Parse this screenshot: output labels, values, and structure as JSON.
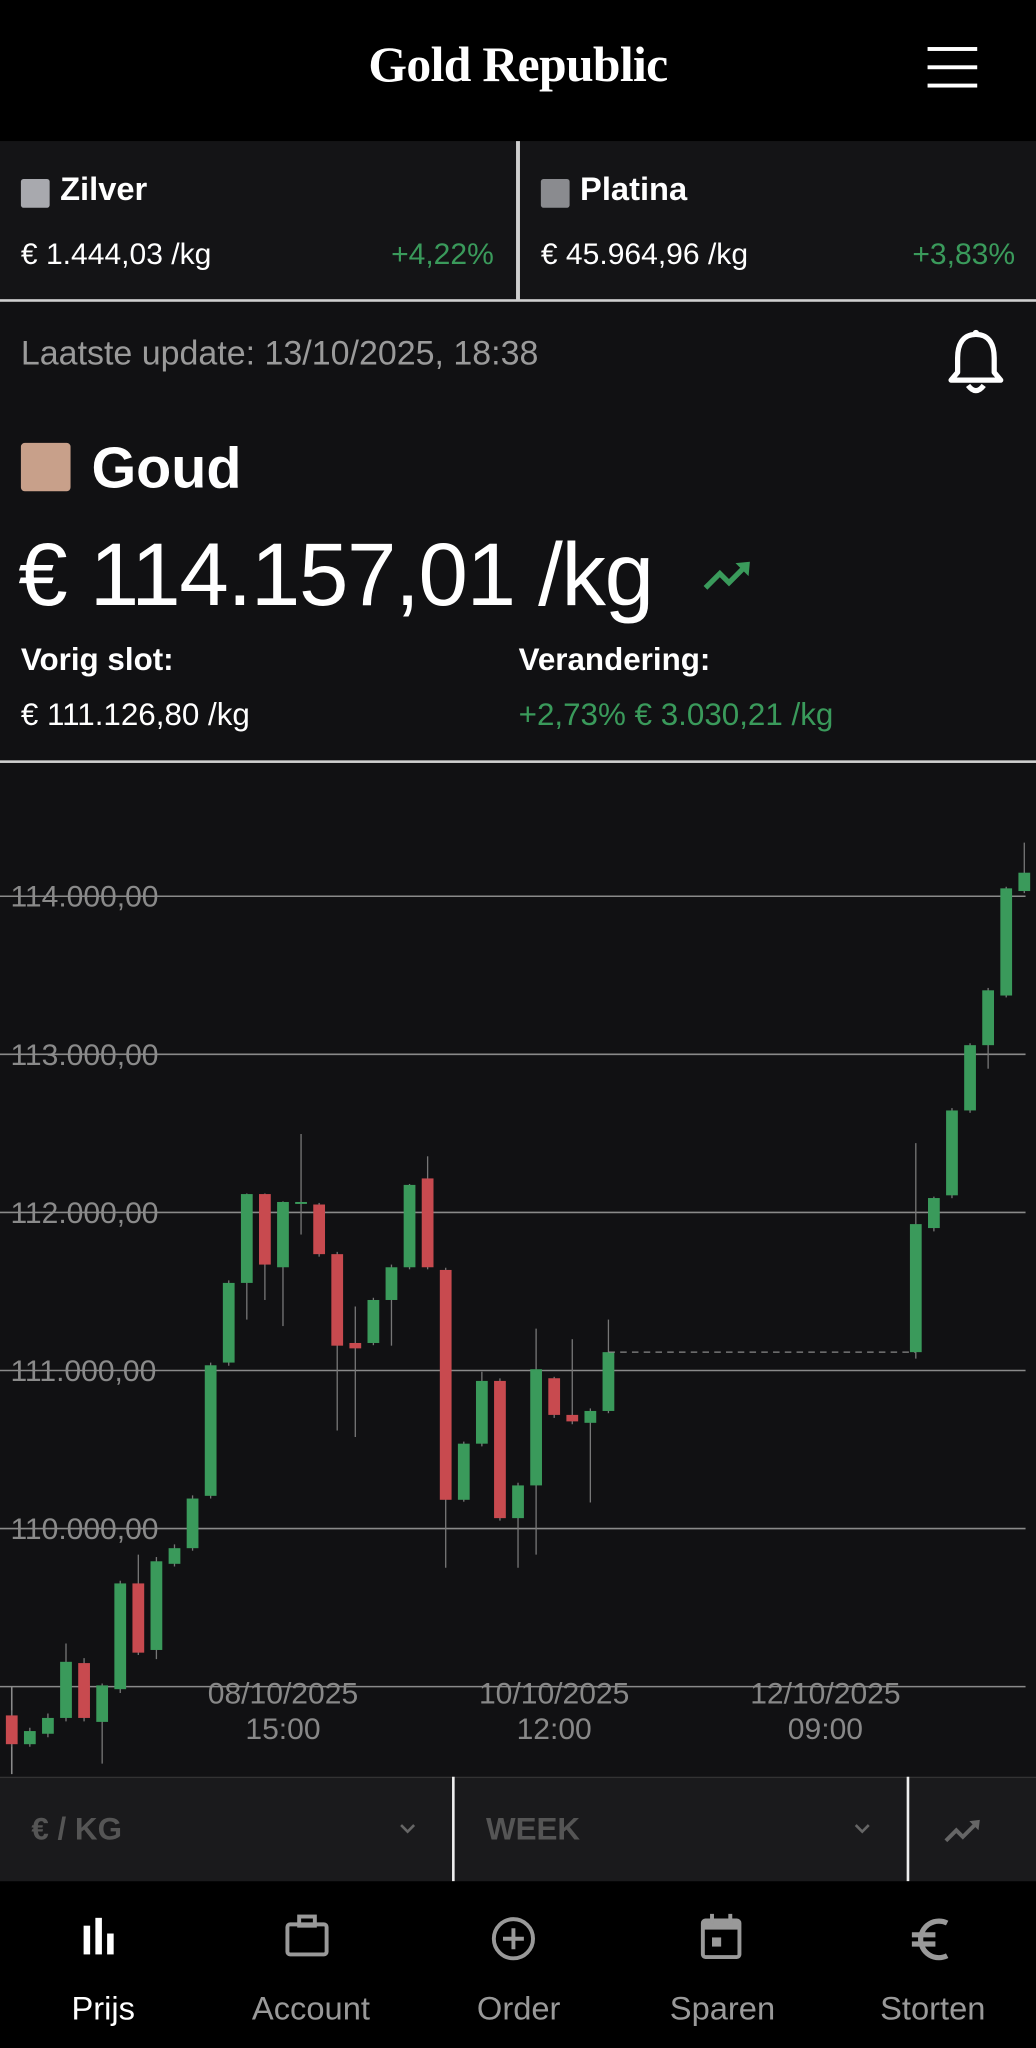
{
  "header": {
    "title": "Gold Republic"
  },
  "tickers": [
    {
      "name": "Zilver",
      "price": "€ 1.444,03 /kg",
      "change": "+4,22%"
    },
    {
      "name": "Platina",
      "price": "€ 45.964,96 /kg",
      "change": "+3,83%"
    }
  ],
  "last_update": "Laatste update: 13/10/2025, 18:38",
  "metal": {
    "name": "Goud",
    "price": "€ 114.157,01 /kg",
    "previous_close_label": "Vorig slot:",
    "previous_close": "€ 111.126,80 /kg",
    "change_label": "Verandering:",
    "change": "+2,73% € 3.030,21 /kg"
  },
  "chart_data": {
    "type": "candlestick",
    "categories": [
      null,
      null,
      null,
      null,
      null,
      null,
      null,
      null,
      null,
      null,
      null,
      null,
      null,
      null,
      null,
      "08/10/2025 15:00",
      null,
      null,
      null,
      null,
      null,
      null,
      null,
      null,
      null,
      null,
      null,
      null,
      null,
      null,
      "10/10/2025 12:00",
      null,
      null,
      null,
      null,
      null,
      null,
      null,
      null,
      null,
      null,
      null,
      null,
      null,
      null,
      "12/10/2025 09:00",
      null,
      null,
      null,
      null,
      null,
      null,
      null,
      null,
      null,
      null,
      null
    ],
    "open": [
      108818,
      108636,
      108702,
      108802,
      109149,
      108777,
      108984,
      109653,
      109232,
      109777,
      109876,
      110207,
      111050,
      111554,
      112116,
      111653,
      112058,
      112050,
      111736,
      111174,
      111174,
      111446,
      111653,
      112215,
      111636,
      110182,
      110537,
      110934,
      110066,
      110273,
      110951,
      110719,
      110669,
      110744,
      null,
      null,
      null,
      null,
      null,
      null,
      null,
      null,
      null,
      null,
      null,
      null,
      null,
      null,
      null,
      null,
      111116,
      111901,
      112108,
      112645,
      113058,
      113372,
      114033
    ],
    "high": [
      108850,
      108740,
      108830,
      109273,
      109180,
      109020,
      109670,
      109835,
      109820,
      109900,
      110210,
      111050,
      111570,
      112120,
      112120,
      112070,
      112496,
      112060,
      111750,
      111405,
      111460,
      111670,
      112180,
      112355,
      111650,
      110550,
      110992,
      110950,
      110290,
      111265,
      110960,
      111198,
      110760,
      111322,
      null,
      null,
      null,
      null,
      null,
      null,
      null,
      null,
      null,
      null,
      null,
      null,
      null,
      null,
      null,
      null,
      112438,
      112100,
      112660,
      113070,
      113420,
      114060,
      114339
    ],
    "low": [
      108620,
      108620,
      108680,
      108780,
      108780,
      108513,
      108960,
      109200,
      109174,
      109760,
      109860,
      110190,
      111030,
      111322,
      111446,
      111281,
      111860,
      111720,
      110620,
      110579,
      111160,
      111157,
      111640,
      111640,
      109752,
      110170,
      110520,
      110050,
      109752,
      109835,
      110700,
      110660,
      110165,
      110730,
      null,
      null,
      null,
      null,
      null,
      null,
      null,
      null,
      null,
      null,
      null,
      null,
      null,
      null,
      null,
      null,
      111075,
      111880,
      112090,
      112630,
      112909,
      113360,
      114020
    ],
    "close": [
      108636,
      108719,
      108802,
      109157,
      108802,
      109008,
      109653,
      109215,
      109793,
      109876,
      110190,
      111033,
      111554,
      112116,
      111670,
      112066,
      112066,
      111736,
      111157,
      111140,
      111446,
      111653,
      112174,
      111653,
      110182,
      110537,
      110934,
      110066,
      110273,
      111008,
      110719,
      110678,
      110744,
      111116,
      null,
      null,
      null,
      null,
      null,
      null,
      null,
      null,
      null,
      null,
      null,
      null,
      null,
      null,
      null,
      null,
      111926,
      112091,
      112645,
      113058,
      113405,
      114050,
      114149
    ],
    "up_color": "#3a9a5b",
    "down_color": "#c84a4f",
    "ylim": [
      108430,
      114835
    ],
    "yticks": [
      {
        "value": 110000,
        "label": "110.000,00"
      },
      {
        "value": 111000,
        "label": "111.000,00"
      },
      {
        "value": 112000,
        "label": "112.000,00"
      },
      {
        "value": 113000,
        "label": "113.000,00"
      },
      {
        "value": 114000,
        "label": "114.000,00"
      }
    ],
    "grid": true
  },
  "controls": {
    "unit": "€ / KG",
    "period": "WEEK"
  },
  "nav": [
    {
      "label": "Prijs"
    },
    {
      "label": "Account"
    },
    {
      "label": "Order"
    },
    {
      "label": "Sparen"
    },
    {
      "label": "Storten"
    }
  ]
}
